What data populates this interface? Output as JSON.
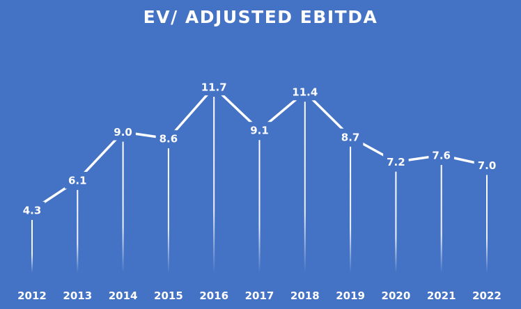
{
  "chart_data": {
    "type": "line",
    "title": "EV/ ADJUSTED EBITDA",
    "categories": [
      "2012",
      "2013",
      "2014",
      "2015",
      "2016",
      "2017",
      "2018",
      "2019",
      "2020",
      "2021",
      "2022"
    ],
    "series": [
      {
        "values": [
          4.3,
          6.1,
          9.0,
          8.6,
          11.7,
          9.1,
          11.4,
          8.7,
          7.2,
          7.6,
          7.0
        ]
      }
    ],
    "data_labels": [
      "4.3",
      "6.1",
      "9.0",
      "8.6",
      "11.7",
      "9.1",
      "11.4",
      "8.7",
      "7.2",
      "7.6",
      "7.0"
    ],
    "xlabel": "",
    "ylabel": "",
    "grid": false,
    "legend": "none",
    "drop_lines": true,
    "colors": {
      "background": "#4472C4",
      "line": "#FFFFFF",
      "text": "#FFFFFF"
    }
  }
}
